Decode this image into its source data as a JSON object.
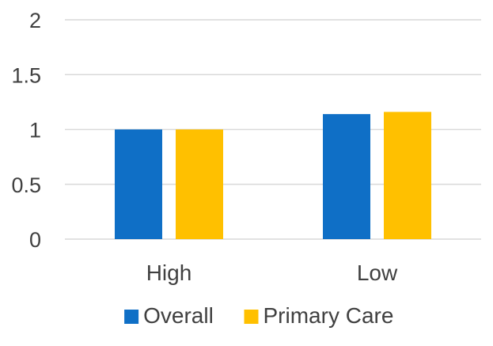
{
  "chart_data": {
    "type": "bar",
    "categories": [
      "High",
      "Low"
    ],
    "series": [
      {
        "name": "Overall",
        "values": [
          1.0,
          1.14
        ],
        "color": "#0f6fc6"
      },
      {
        "name": "Primary Care",
        "values": [
          1.0,
          1.16
        ],
        "color": "#ffc000"
      }
    ],
    "title": "",
    "xlabel": "",
    "ylabel": "",
    "ylim": [
      0,
      2
    ],
    "yticks": [
      {
        "value": 0,
        "label": "0"
      },
      {
        "value": 0.5,
        "label": "0.5"
      },
      {
        "value": 1,
        "label": "1"
      },
      {
        "value": 1.5,
        "label": "1.5"
      },
      {
        "value": 2,
        "label": "2"
      }
    ],
    "grid": true,
    "gridline_color": "#d9d9d9",
    "legend_position": "bottom"
  }
}
